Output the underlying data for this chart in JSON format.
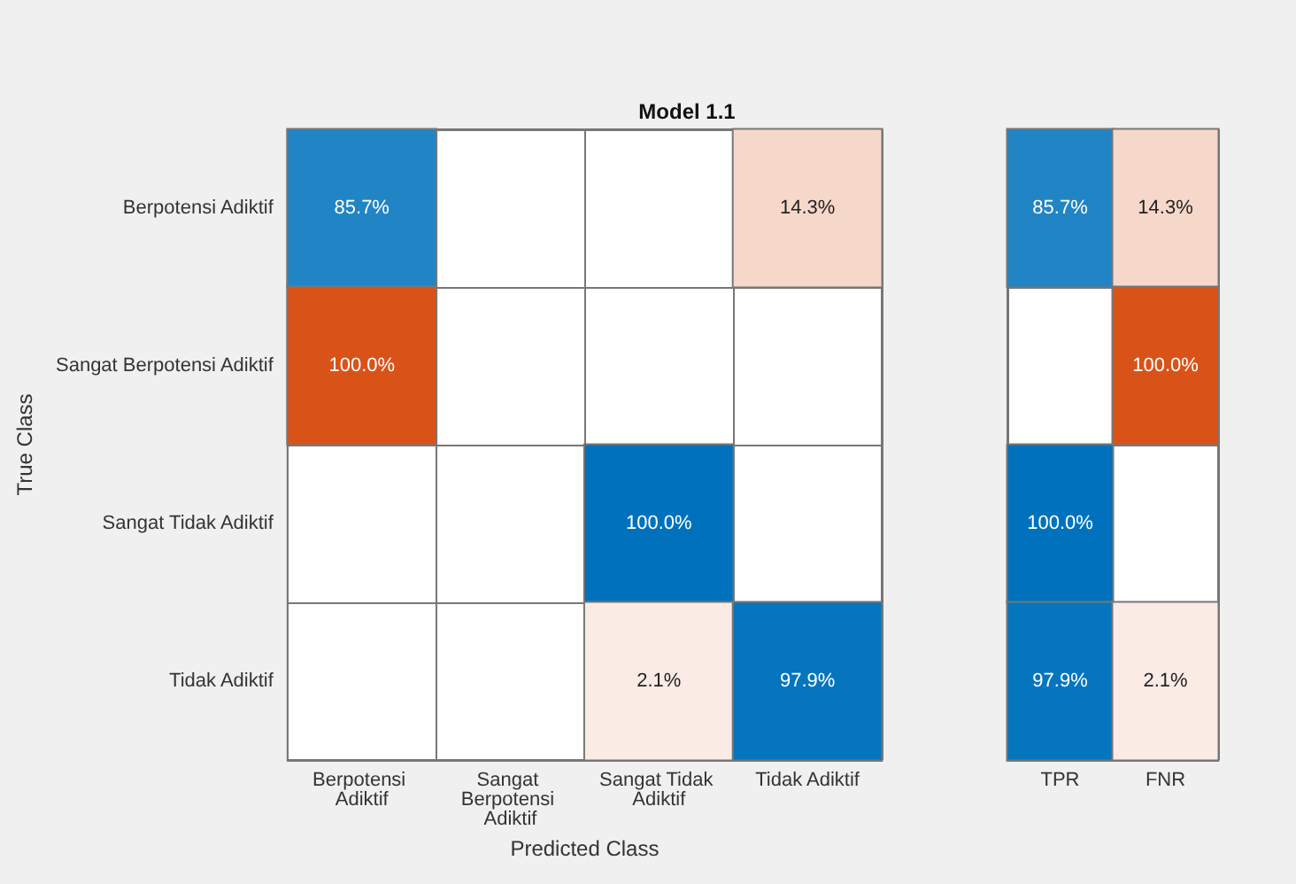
{
  "chart_data": [
    {
      "type": "heatmap",
      "title": "Model 1.1",
      "xlabel": "Predicted Class",
      "ylabel": "True Class",
      "categories": [
        "Berpotensi Adiktif",
        "Sangat Berpotensi Adiktif",
        "Sangat Tidak Adiktif",
        "Tidak Adiktif"
      ],
      "y_categories": [
        "Berpotensi Adiktif",
        "Sangat Berpotensi Adiktif",
        "Sangat Tidak Adiktif",
        "Tidak Adiktif"
      ],
      "cells": [
        [
          85.7,
          null,
          null,
          14.3
        ],
        [
          100.0,
          null,
          null,
          null
        ],
        [
          null,
          null,
          100.0,
          null
        ],
        [
          null,
          null,
          2.1,
          97.9
        ]
      ],
      "cell_labels": [
        [
          "85.7%",
          null,
          null,
          "14.3%"
        ],
        [
          "100.0%",
          null,
          null,
          null
        ],
        [
          null,
          null,
          "100.0%",
          null
        ],
        [
          null,
          null,
          "2.1%",
          "97.9%"
        ]
      ],
      "colors": [
        [
          "#0072bd",
          null,
          null,
          "#d95319"
        ],
        [
          "#d95319",
          null,
          null,
          null
        ],
        [
          null,
          null,
          "#0072bd",
          null
        ],
        [
          null,
          null,
          "#d95319",
          "#0072bd"
        ]
      ]
    },
    {
      "type": "heatmap",
      "categories": [
        "TPR",
        "FNR"
      ],
      "y_categories": [
        "Berpotensi Adiktif",
        "Sangat Berpotensi Adiktif",
        "Sangat Tidak Adiktif",
        "Tidak Adiktif"
      ],
      "cells": [
        [
          85.7,
          14.3
        ],
        [
          null,
          100.0
        ],
        [
          100.0,
          null
        ],
        [
          97.9,
          2.1
        ]
      ],
      "cell_labels": [
        [
          "85.7%",
          "14.3%"
        ],
        [
          null,
          "100.0%"
        ],
        [
          "100.0%",
          null
        ],
        [
          "97.9%",
          "2.1%"
        ]
      ],
      "colors": [
        [
          "#0072bd",
          "#d95319"
        ],
        [
          null,
          "#d95319"
        ],
        [
          "#0072bd",
          null
        ],
        [
          "#0072bd",
          "#d95319"
        ]
      ],
      "tick_labels": "x"
    }
  ]
}
